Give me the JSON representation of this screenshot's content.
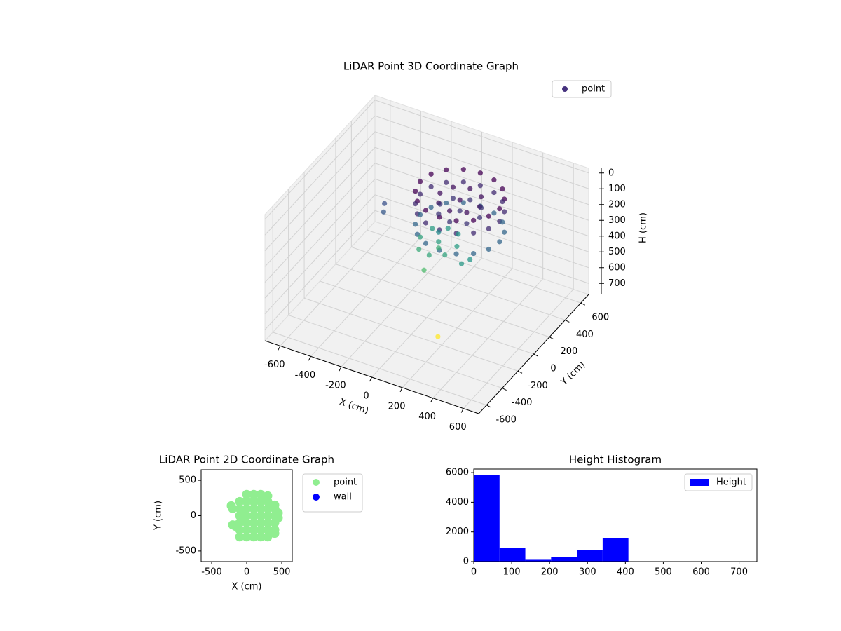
{
  "chart_data": [
    {
      "type": "scatter3d",
      "title": "LiDAR Point 3D Coordinate Graph",
      "xlabel": "X (cm)",
      "ylabel": "Y (cm)",
      "zlabel": "H (cm)",
      "xlim": [
        -700,
        700
      ],
      "ylim": [
        -700,
        700
      ],
      "zlim": [
        -30,
        770
      ],
      "z_inverted": true,
      "xticks": [
        -600,
        -400,
        -200,
        0,
        200,
        400,
        600
      ],
      "yticks": [
        -600,
        -400,
        -200,
        0,
        200,
        400,
        600
      ],
      "zticks": [
        0,
        100,
        200,
        300,
        400,
        500,
        600,
        700
      ],
      "colormap": "viridis",
      "grid": true,
      "legend": "upper right",
      "series": [
        {
          "name": "point",
          "color": "#46327e",
          "x": [
            333,
            313,
            257,
            173,
            73,
            -27,
            -111,
            -167,
            -187,
            -167,
            -111,
            -27,
            73,
            173,
            257,
            313,
            333,
            313,
            257,
            173,
            73,
            -27,
            -111,
            -167,
            -187,
            -167,
            -111,
            -27,
            73,
            173,
            257,
            313,
            333,
            313,
            257,
            173,
            73,
            -27,
            -111,
            -167,
            -187,
            -167,
            -111,
            -27,
            73,
            173,
            257,
            313,
            73,
            203,
            165,
            73,
            -19,
            -57,
            -19,
            73,
            165,
            73,
            203,
            165,
            73,
            -19,
            -57,
            -19,
            73,
            165,
            -380,
            -360,
            -80,
            40,
            -200,
            -80,
            -80,
            5,
            -165,
            5,
            -165,
            -80,
            -80,
            -80,
            150,
            180,
            150
          ],
          "y": [
            279,
            379,
            463,
            519,
            539,
            519,
            463,
            379,
            279,
            179,
            95,
            39,
            19,
            39,
            95,
            179,
            279,
            379,
            463,
            519,
            539,
            519,
            463,
            379,
            279,
            179,
            95,
            39,
            19,
            39,
            95,
            179,
            279,
            379,
            463,
            519,
            539,
            519,
            463,
            379,
            279,
            179,
            95,
            39,
            19,
            39,
            95,
            179,
            279,
            279,
            371,
            409,
            371,
            279,
            187,
            149,
            187,
            279,
            279,
            371,
            409,
            371,
            279,
            187,
            149,
            187,
            200,
            150,
            305,
            305,
            305,
            425,
            185,
            390,
            220,
            220,
            390,
            305,
            305,
            120,
            150,
            200,
            -150
          ],
          "z": [
            120,
            120,
            120,
            120,
            120,
            120,
            120,
            120,
            120,
            120,
            120,
            120,
            120,
            120,
            120,
            120,
            200,
            200,
            200,
            200,
            200,
            200,
            200,
            200,
            200,
            200,
            200,
            200,
            200,
            200,
            200,
            200,
            330,
            330,
            330,
            330,
            330,
            330,
            330,
            330,
            330,
            330,
            330,
            330,
            330,
            330,
            330,
            330,
            150,
            150,
            150,
            150,
            150,
            150,
            150,
            150,
            150,
            220,
            220,
            220,
            220,
            220,
            220,
            220,
            220,
            220,
            280,
            300,
            480,
            470,
            490,
            460,
            500,
            450,
            510,
            490,
            470,
            420,
            520,
            560,
            460,
            450,
            760
          ]
        }
      ]
    },
    {
      "type": "scatter",
      "title": "LiDAR Point 2D Coordinate Graph",
      "xlabel": "X (cm)",
      "ylabel": "Y (cm)",
      "xlim": [
        -650,
        650
      ],
      "ylim": [
        -650,
        650
      ],
      "xticks": [
        -500,
        0,
        500
      ],
      "yticks": [
        -500,
        0,
        500
      ],
      "legend": "outside upper right",
      "series": [
        {
          "name": "point",
          "color": "#90ee90",
          "x": [
            -100,
            0,
            100,
            200,
            300,
            400,
            -100,
            0,
            100,
            200,
            300,
            400,
            -100,
            0,
            100,
            200,
            300,
            400,
            -100,
            0,
            100,
            200,
            300,
            400,
            -100,
            0,
            100,
            200,
            300,
            400,
            -100,
            0,
            100,
            200,
            300,
            400,
            0,
            100,
            200,
            300,
            -220,
            -200,
            -200,
            -160,
            450,
            450,
            -60,
            -60
          ],
          "y": [
            -300,
            -300,
            -300,
            -300,
            -300,
            -250,
            -200,
            -200,
            -200,
            -200,
            -200,
            -200,
            -100,
            -100,
            -100,
            -100,
            -100,
            -100,
            0,
            0,
            0,
            0,
            0,
            0,
            100,
            100,
            100,
            100,
            100,
            100,
            200,
            200,
            200,
            200,
            200,
            150,
            300,
            300,
            300,
            280,
            140,
            100,
            -130,
            -150,
            -30,
            40,
            30,
            -50
          ]
        },
        {
          "name": "wall",
          "color": "#0000ff",
          "x": [],
          "y": []
        }
      ]
    },
    {
      "type": "histogram",
      "title": "Height Histogram",
      "xlim": [
        0,
        747
      ],
      "ylim": [
        0,
        6240
      ],
      "xticks": [
        0,
        100,
        200,
        300,
        400,
        500,
        600,
        700
      ],
      "yticks": [
        0,
        2000,
        4000,
        6000
      ],
      "legend": "upper right",
      "bins": [
        0,
        68,
        136,
        204,
        272,
        340,
        408,
        476,
        544,
        612,
        680
      ],
      "series": [
        {
          "name": "Height",
          "color": "#0000ff",
          "values": [
            5850,
            900,
            120,
            300,
            780,
            1580,
            0,
            0,
            0,
            1
          ]
        }
      ]
    }
  ]
}
